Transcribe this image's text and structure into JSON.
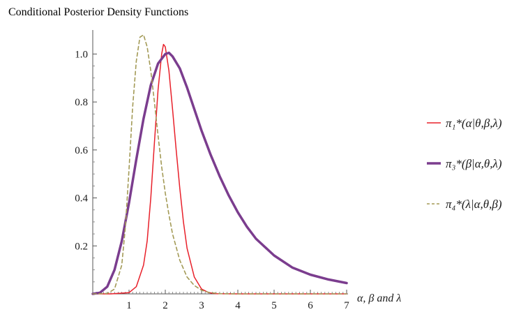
{
  "chart_data": {
    "type": "line",
    "title": "Conditional Posterior Density Functions",
    "xlabel": "α, β and λ",
    "ylabel": "",
    "xlim": [
      0,
      7
    ],
    "ylim": [
      0,
      1.1
    ],
    "x_ticks": [
      "1",
      "2",
      "3",
      "4",
      "5",
      "6",
      "7"
    ],
    "x_tick_values": [
      1,
      2,
      3,
      4,
      5,
      6,
      7
    ],
    "y_ticks": [
      "0.2",
      "0.4",
      "0.6",
      "0.8",
      "1.0"
    ],
    "y_tick_values": [
      0.2,
      0.4,
      0.6,
      0.8,
      1.0
    ],
    "grid": false,
    "legend_position": "right",
    "series": [
      {
        "name": "π₁*(α|θ,β,λ)",
        "color": "#e8202a",
        "style": "solid",
        "x": [
          0.0,
          0.5,
          1.0,
          1.2,
          1.4,
          1.5,
          1.6,
          1.7,
          1.8,
          1.9,
          1.95,
          2.0,
          2.1,
          2.2,
          2.3,
          2.4,
          2.5,
          2.6,
          2.8,
          3.0,
          3.2,
          3.4,
          4.0,
          5.0,
          6.0,
          7.0
        ],
        "y": [
          0.0,
          0.0,
          0.005,
          0.03,
          0.12,
          0.22,
          0.4,
          0.63,
          0.85,
          1.0,
          1.04,
          1.03,
          0.93,
          0.77,
          0.6,
          0.44,
          0.3,
          0.19,
          0.07,
          0.02,
          0.005,
          0.001,
          0.0,
          0.0,
          0.0,
          0.0
        ]
      },
      {
        "name": "π₃*(β|α,θ,λ)",
        "color": "#7b3d8e",
        "style": "solid",
        "x": [
          0.0,
          0.2,
          0.4,
          0.6,
          0.8,
          1.0,
          1.2,
          1.4,
          1.6,
          1.8,
          2.0,
          2.1,
          2.2,
          2.4,
          2.6,
          2.8,
          3.0,
          3.25,
          3.5,
          3.75,
          4.0,
          4.25,
          4.5,
          5.0,
          5.5,
          6.0,
          6.5,
          7.0
        ],
        "y": [
          0.0,
          0.005,
          0.03,
          0.1,
          0.22,
          0.38,
          0.56,
          0.73,
          0.87,
          0.96,
          1.0,
          1.005,
          0.99,
          0.94,
          0.86,
          0.77,
          0.68,
          0.58,
          0.49,
          0.41,
          0.34,
          0.28,
          0.23,
          0.16,
          0.11,
          0.08,
          0.06,
          0.045
        ]
      },
      {
        "name": "π₄*(λ|α,θ,β)",
        "color": "#a39a56",
        "style": "dashed",
        "x": [
          0.0,
          0.4,
          0.6,
          0.8,
          0.9,
          1.0,
          1.1,
          1.2,
          1.3,
          1.4,
          1.5,
          1.6,
          1.7,
          1.8,
          1.9,
          2.0,
          2.1,
          2.2,
          2.4,
          2.6,
          2.8,
          3.0,
          3.2,
          3.5,
          4.0,
          5.0,
          7.0
        ],
        "y": [
          0.0,
          0.002,
          0.02,
          0.12,
          0.28,
          0.52,
          0.78,
          0.97,
          1.07,
          1.08,
          1.03,
          0.93,
          0.8,
          0.66,
          0.53,
          0.42,
          0.33,
          0.25,
          0.14,
          0.07,
          0.035,
          0.015,
          0.006,
          0.001,
          0.0,
          0.0,
          0.0
        ]
      }
    ]
  }
}
